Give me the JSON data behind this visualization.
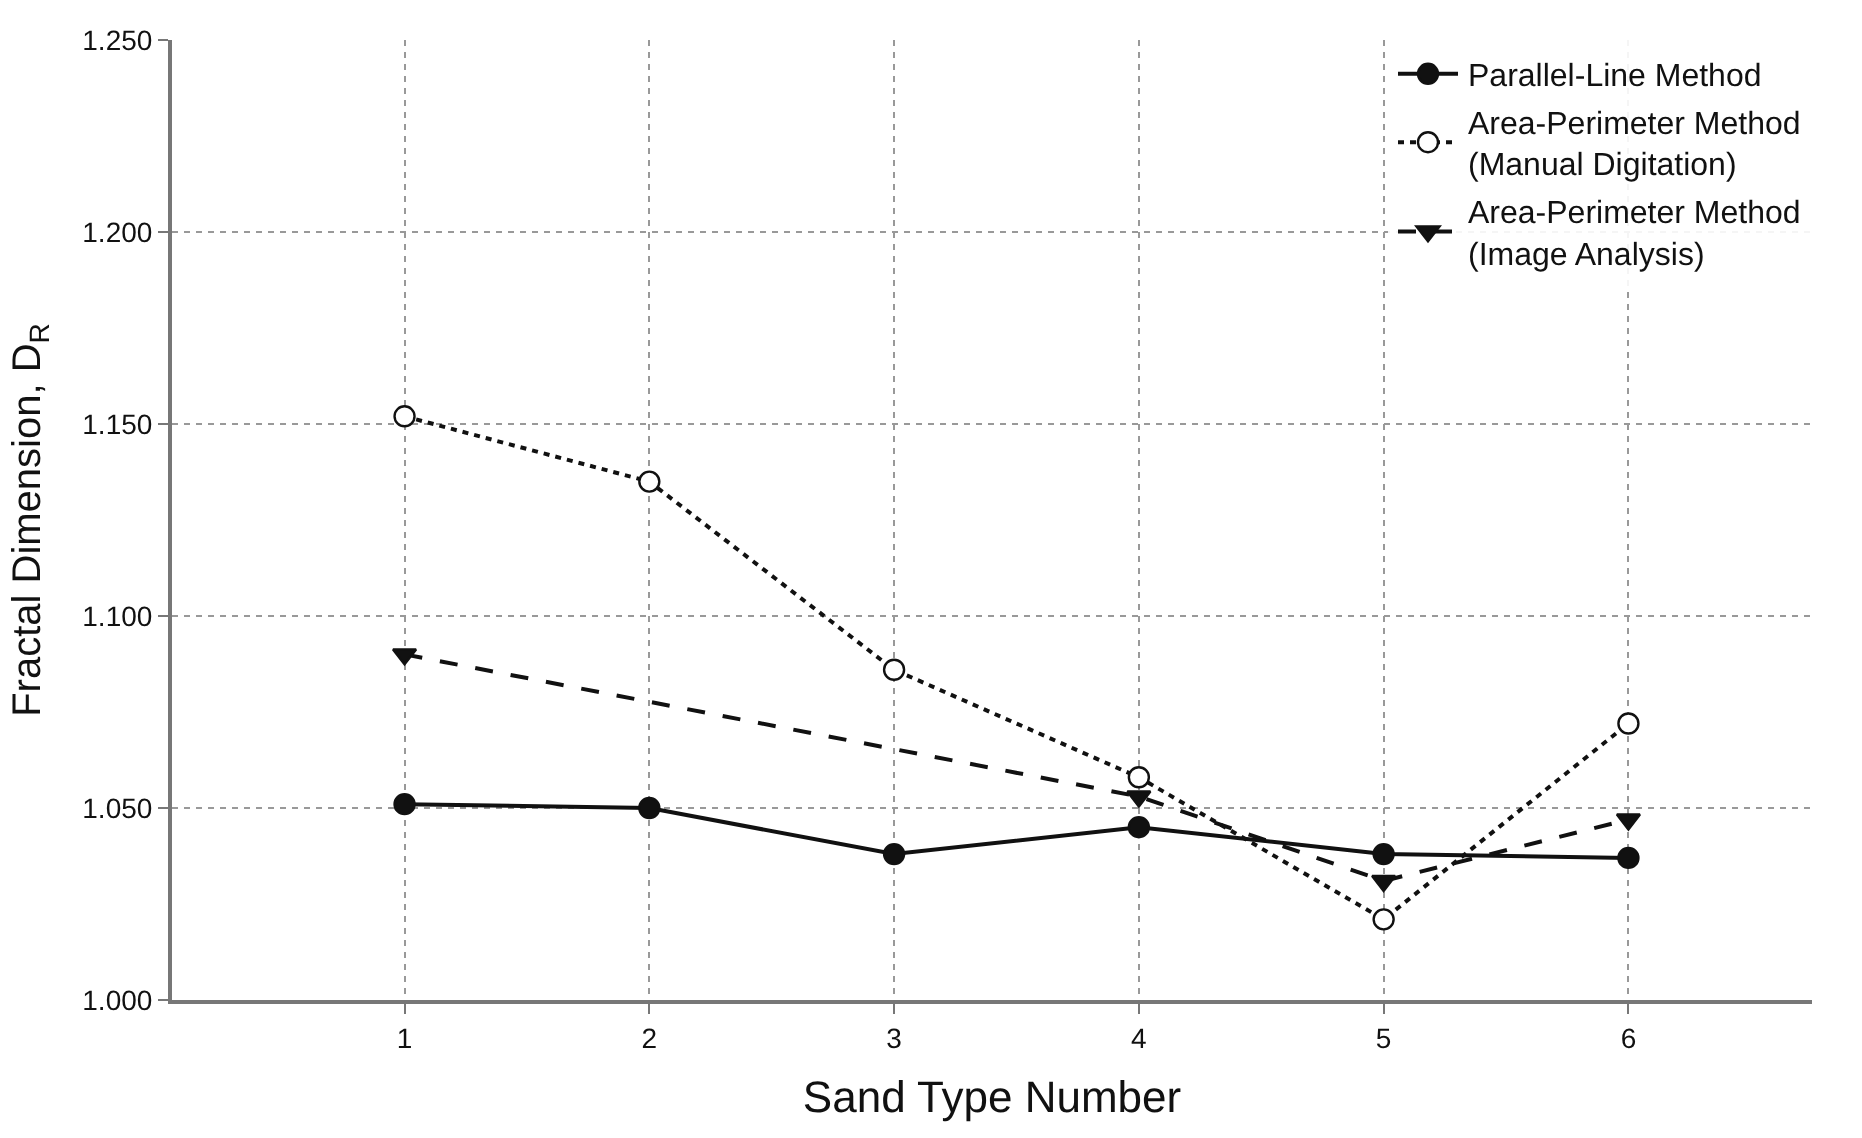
{
  "chart_data": {
    "type": "line",
    "xlabel": "Sand Type Number",
    "ylabel": "Fractal Dimension, D$_{R}$",
    "x": [
      1,
      2,
      3,
      4,
      5,
      6
    ],
    "xlim": [
      0.05,
      6.75
    ],
    "xticks": [
      1,
      2,
      3,
      4,
      5,
      6
    ],
    "ylim": [
      1.0,
      1.25
    ],
    "yticks": [
      {
        "value": 1.0,
        "label": "1.000"
      },
      {
        "value": 1.05,
        "label": "1.050"
      },
      {
        "value": 1.1,
        "label": "1.100"
      },
      {
        "value": 1.15,
        "label": "1.150"
      },
      {
        "value": 1.2,
        "label": "1.200"
      },
      {
        "value": 1.25,
        "label": "1.250"
      }
    ],
    "grid": true,
    "legend": "top right",
    "series": [
      {
        "name": "Parallel-Line Method",
        "color": "#111111",
        "marker": "circle",
        "line_style": "solid",
        "values": [
          1.051,
          1.05,
          1.038,
          1.045,
          1.038,
          1.037
        ]
      },
      {
        "name": "Area-Perimeter Method\n(Manual Digitation)",
        "color": "#111111",
        "marker": "circle-open",
        "line_style": "dotted",
        "values": [
          1.152,
          1.135,
          1.086,
          1.058,
          1.021,
          1.072
        ]
      },
      {
        "name": "Area-Perimeter Method\n(Image Analysis)",
        "color": "#111111",
        "marker": "triangle",
        "line_style": "dashed",
        "x": [
          1,
          4,
          5,
          6
        ],
        "values": [
          1.09,
          1.053,
          1.031,
          1.047
        ]
      }
    ]
  }
}
